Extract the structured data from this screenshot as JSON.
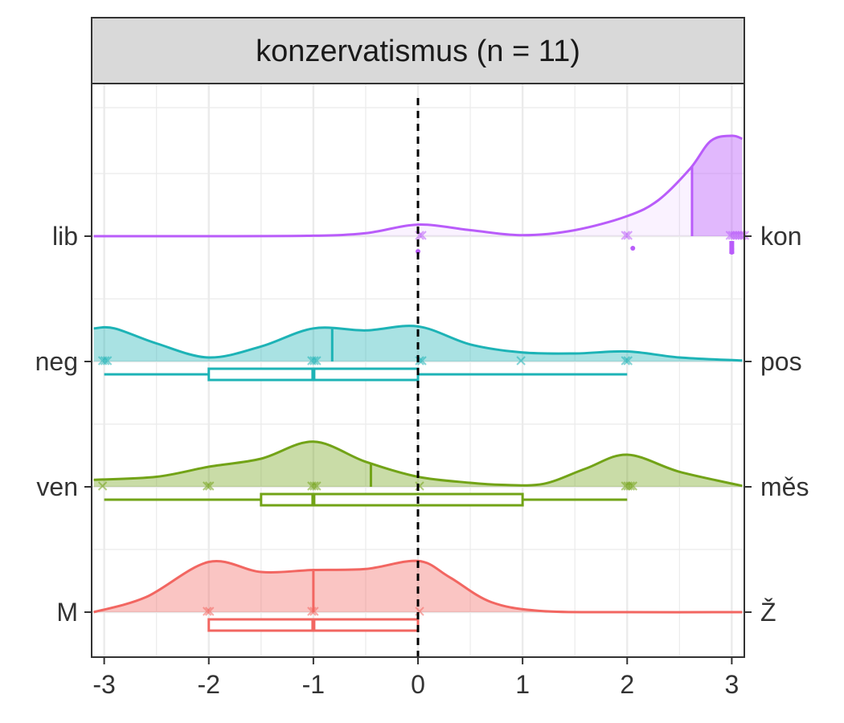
{
  "chart_data": {
    "type": "ridgeline",
    "title": "konzervatismus (n = 11)",
    "xlabel": "",
    "ylabel": "",
    "xlim": [
      -3.12,
      3.12
    ],
    "x_ticks": [
      -3,
      -2,
      -1,
      0,
      1,
      2,
      3
    ],
    "reference_line_x": 0,
    "grid": true,
    "series": [
      {
        "left_label": "lib",
        "right_label": "kon",
        "color": "#B95CFA",
        "points": [
          0,
          0,
          2,
          2,
          3,
          3,
          3,
          3,
          3,
          3,
          3
        ],
        "median": 2.62,
        "box": null,
        "density": [
          [
            -3.1,
            0
          ],
          [
            -2.0,
            0
          ],
          [
            -1.0,
            0.005
          ],
          [
            -0.5,
            0.03
          ],
          [
            0,
            0.115
          ],
          [
            0.5,
            0.06
          ],
          [
            1,
            0.01
          ],
          [
            1.5,
            0.06
          ],
          [
            2,
            0.2
          ],
          [
            2.3,
            0.36
          ],
          [
            2.6,
            0.67
          ],
          [
            2.8,
            0.95
          ],
          [
            3,
            1.0
          ],
          [
            3.1,
            0.97
          ]
        ]
      },
      {
        "left_label": "neg",
        "right_label": "pos",
        "color": "#1DB3B6",
        "points": [
          -3,
          -3,
          -3,
          -1,
          -1,
          -1,
          0,
          0,
          1,
          2,
          2
        ],
        "median": -0.82,
        "box": {
          "lower": -3,
          "q1": -2,
          "median": -1,
          "q3": 0,
          "upper": 2
        },
        "density": [
          [
            -3.1,
            0.33
          ],
          [
            -2.9,
            0.33
          ],
          [
            -2.5,
            0.18
          ],
          [
            -2.0,
            0.04
          ],
          [
            -1.5,
            0.15
          ],
          [
            -1.0,
            0.33
          ],
          [
            -0.5,
            0.31
          ],
          [
            0,
            0.35
          ],
          [
            0.5,
            0.17
          ],
          [
            1,
            0.09
          ],
          [
            1.5,
            0.08
          ],
          [
            2,
            0.1
          ],
          [
            2.5,
            0.04
          ],
          [
            3.1,
            0.01
          ]
        ]
      },
      {
        "left_label": "ven",
        "right_label": "měs",
        "color": "#72A317",
        "points": [
          -3,
          -2,
          -2,
          -1,
          -1,
          -1,
          0,
          2,
          2,
          2,
          2
        ],
        "median": -0.45,
        "box": {
          "lower": -3,
          "q1": -1.5,
          "median": -1,
          "q3": 1,
          "upper": 2
        },
        "density": [
          [
            -3.1,
            0.07
          ],
          [
            -2.5,
            0.1
          ],
          [
            -2.0,
            0.2
          ],
          [
            -1.5,
            0.28
          ],
          [
            -1.0,
            0.45
          ],
          [
            -0.5,
            0.25
          ],
          [
            0,
            0.1
          ],
          [
            0.5,
            0.04
          ],
          [
            0.8,
            0.02
          ],
          [
            1.2,
            0.03
          ],
          [
            1.6,
            0.18
          ],
          [
            2,
            0.32
          ],
          [
            2.5,
            0.15
          ],
          [
            3.1,
            0.01
          ]
        ]
      },
      {
        "left_label": "M",
        "right_label": "Ž",
        "color": "#F26661",
        "points": [
          -2,
          -2,
          -1,
          -1,
          0
        ],
        "median": -1,
        "box": {
          "lower": -2,
          "q1": -2,
          "median": -1,
          "q3": 0,
          "upper": 0
        },
        "density": [
          [
            -3.1,
            0
          ],
          [
            -2.6,
            0.15
          ],
          [
            -2.0,
            0.5
          ],
          [
            -1.5,
            0.4
          ],
          [
            -1.0,
            0.42
          ],
          [
            -0.5,
            0.43
          ],
          [
            0,
            0.51
          ],
          [
            0.3,
            0.35
          ],
          [
            0.7,
            0.1
          ],
          [
            1.2,
            0.01
          ],
          [
            2,
            0
          ],
          [
            3.1,
            0
          ]
        ]
      }
    ]
  }
}
